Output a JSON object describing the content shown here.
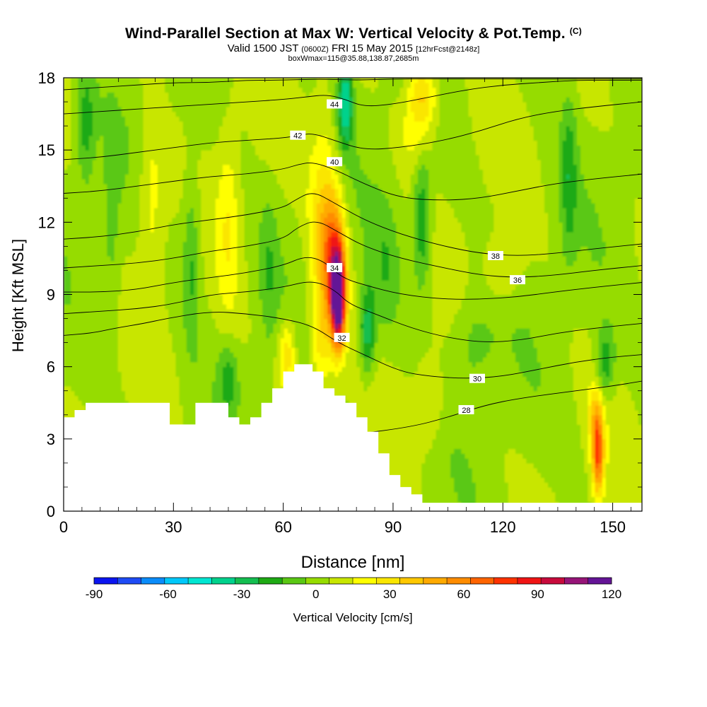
{
  "header": {
    "title": "Wind-Parallel Section at Max W: Vertical Velocity & Pot.Temp.",
    "copyright": "(C)",
    "valid_prefix": "Valid 1500 JST",
    "valid_utc": "(0600Z)",
    "valid_date": "FRI 15 May 2015",
    "forecast": "[12hrFcst@2148z]",
    "box_info": "boxWmax=115@35.88,138.87,2685m"
  },
  "chart_data": {
    "type": "heatmap",
    "title": "Wind-Parallel Section at Max W: Vertical Velocity & Pot.Temp.",
    "xlabel": "Distance [nm]",
    "ylabel": "Height [Kft MSL]",
    "xlim": [
      0,
      158
    ],
    "ylim": [
      0,
      18
    ],
    "x_ticks": [
      "0",
      "30",
      "60",
      "90",
      "120",
      "150"
    ],
    "y_ticks": [
      "0",
      "3",
      "6",
      "9",
      "12",
      "15",
      "18"
    ],
    "x_tick_values": [
      0,
      30,
      60,
      90,
      120,
      150
    ],
    "y_tick_values": [
      0,
      3,
      6,
      9,
      12,
      15,
      18
    ],
    "colorbar": {
      "label": "Vertical Velocity [cm/s]",
      "tick_labels": [
        "-90",
        "-60",
        "-30",
        "0",
        "30",
        "60",
        "90",
        "120"
      ],
      "tick_values": [
        -90,
        -60,
        -30,
        0,
        30,
        60,
        90,
        120
      ],
      "min": -90,
      "max": 120,
      "step": 10,
      "colors": [
        "#0a14f0",
        "#1e4bf5",
        "#0a8cfa",
        "#00c8fa",
        "#00e6d2",
        "#00d28c",
        "#14be50",
        "#1eaa14",
        "#5ac814",
        "#96dc00",
        "#c8e600",
        "#ffff00",
        "#fae600",
        "#ffc800",
        "#ffaa00",
        "#ff8c00",
        "#ff6400",
        "#ff3200",
        "#f01414",
        "#c80a3c",
        "#961478",
        "#641496"
      ]
    },
    "terrain_profile": {
      "x": [
        0,
        3,
        3,
        6,
        6,
        29,
        29,
        36,
        36,
        45,
        45,
        48,
        48,
        51,
        51,
        54,
        54,
        57,
        57,
        60,
        60,
        63,
        63,
        68,
        68,
        71,
        71,
        74,
        74,
        77,
        77,
        80,
        80,
        83,
        83,
        86,
        86,
        89,
        89,
        92,
        92,
        95,
        95,
        98,
        98,
        101,
        101,
        158
      ],
      "y": [
        3.9,
        3.9,
        4.2,
        4.2,
        4.5,
        4.5,
        3.6,
        3.6,
        4.5,
        4.5,
        3.9,
        3.9,
        3.6,
        3.6,
        3.9,
        3.9,
        4.5,
        4.5,
        5.1,
        5.1,
        5.8,
        5.8,
        6.1,
        6.1,
        5.8,
        5.8,
        5.1,
        5.1,
        4.8,
        4.8,
        4.5,
        4.5,
        3.9,
        3.9,
        3.3,
        3.3,
        2.4,
        2.4,
        1.5,
        1.5,
        1.0,
        1.0,
        0.7,
        0.7,
        0.35,
        0.35,
        0.35,
        0.35
      ]
    },
    "w_features": [
      {
        "x": 75,
        "y": 8.8,
        "sx": 1.9,
        "sy": 1.9,
        "value": 120
      },
      {
        "x": 74,
        "y": 10.5,
        "sx": 3.2,
        "sy": 2.6,
        "value": 55
      },
      {
        "x": 71,
        "y": 11.8,
        "sx": 4,
        "sy": 4.5,
        "value": 32
      },
      {
        "x": 70,
        "y": 7,
        "sx": 3,
        "sy": 2,
        "value": 20
      },
      {
        "x": 61,
        "y": 6.5,
        "sx": 2.5,
        "sy": 1.5,
        "value": 32
      },
      {
        "x": 146,
        "y": 2.4,
        "sx": 1.6,
        "sy": 1.7,
        "value": 70
      },
      {
        "x": 145,
        "y": 4,
        "sx": 2,
        "sy": 1.3,
        "value": 22
      },
      {
        "x": 98,
        "y": 17.3,
        "sx": 4,
        "sy": 1.4,
        "value": 38
      },
      {
        "x": 96,
        "y": 15.5,
        "sx": 5,
        "sy": 1.5,
        "value": 14
      },
      {
        "x": 24,
        "y": 13,
        "sx": 3.5,
        "sy": 4,
        "value": 18
      },
      {
        "x": 45,
        "y": 12,
        "sx": 3,
        "sy": 4,
        "value": 18
      },
      {
        "x": 120,
        "y": 10,
        "sx": 5,
        "sy": 1.5,
        "value": 15
      },
      {
        "x": 100,
        "y": 4.5,
        "sx": 4,
        "sy": 1.8,
        "value": 15
      },
      {
        "x": 77,
        "y": 17,
        "sx": 2,
        "sy": 1.8,
        "value": -48
      },
      {
        "x": 83,
        "y": 7.5,
        "sx": 2.2,
        "sy": 1.8,
        "value": -38
      },
      {
        "x": 98,
        "y": 12,
        "sx": 2.5,
        "sy": 2.8,
        "value": -32
      },
      {
        "x": 35,
        "y": 10.5,
        "sx": 2.5,
        "sy": 3.5,
        "value": -22
      },
      {
        "x": 6,
        "y": 16,
        "sx": 2.5,
        "sy": 2.5,
        "value": -22
      },
      {
        "x": 45,
        "y": 5.6,
        "sx": 2.5,
        "sy": 1.4,
        "value": -22
      },
      {
        "x": 148,
        "y": 6.2,
        "sx": 2.5,
        "sy": 1.4,
        "value": -28
      },
      {
        "x": 138,
        "y": 14,
        "sx": 2.2,
        "sy": 3.5,
        "value": -22
      },
      {
        "x": 112,
        "y": 7,
        "sx": 6,
        "sy": 2,
        "value": -14
      },
      {
        "x": 88,
        "y": 10,
        "sx": 4,
        "sy": 3,
        "value": -15
      },
      {
        "x": 56,
        "y": 10,
        "sx": 2.5,
        "sy": 3,
        "value": -14
      },
      {
        "x": 13,
        "y": 11,
        "sx": 2.5,
        "sy": 4,
        "value": -12
      }
    ],
    "theta_contours": [
      {
        "label": "28",
        "label_at": [
          110,
          4.2
        ],
        "x": [
          80,
          95,
          105,
          115,
          125,
          140,
          150,
          158
        ],
        "y": [
          3.2,
          3.5,
          3.9,
          4.4,
          4.7,
          5.0,
          5.2,
          5.4
        ]
      },
      {
        "label": "30",
        "label_at": [
          113,
          5.5
        ],
        "x": [
          0,
          8,
          14,
          22,
          28,
          40,
          50,
          60,
          68,
          75,
          82,
          92,
          100,
          110,
          120,
          130,
          140,
          150,
          158
        ],
        "y": [
          7.3,
          7.4,
          7.6,
          7.8,
          8.0,
          8.3,
          8.2,
          8.0,
          7.7,
          7.0,
          6.5,
          5.8,
          5.6,
          5.5,
          5.6,
          5.9,
          6.2,
          6.4,
          6.5
        ]
      },
      {
        "label": "32",
        "label_at": [
          76,
          7.2
        ],
        "x": [
          0,
          10,
          20,
          30,
          40,
          50,
          60,
          68,
          74,
          78,
          85,
          95,
          105,
          115,
          125,
          135,
          145,
          158
        ],
        "y": [
          8.2,
          8.3,
          8.4,
          8.6,
          9.0,
          9.1,
          9.3,
          9.6,
          9.2,
          8.6,
          8.2,
          7.6,
          7.2,
          7.0,
          7.1,
          7.4,
          7.6,
          7.8
        ]
      },
      {
        "label": "34",
        "label_at": [
          74,
          10.1
        ],
        "x": [
          0,
          10,
          20,
          30,
          40,
          50,
          60,
          66,
          71,
          76,
          82,
          92,
          104,
          114,
          124,
          134,
          145,
          158
        ],
        "y": [
          9.1,
          9.1,
          9.2,
          9.5,
          9.7,
          9.9,
          10.2,
          10.6,
          10.4,
          9.7,
          9.4,
          9.0,
          8.8,
          8.8,
          8.9,
          9.1,
          9.3,
          9.5
        ]
      },
      {
        "label": "36",
        "label_at": [
          124,
          9.6
        ],
        "x": [
          0,
          10,
          20,
          30,
          40,
          50,
          60,
          64,
          69,
          75,
          82,
          92,
          104,
          114,
          124,
          134,
          145,
          158
        ],
        "y": [
          10.1,
          10.2,
          10.3,
          10.5,
          10.8,
          11.0,
          11.3,
          11.8,
          12.1,
          11.6,
          11.0,
          10.5,
          10.1,
          9.8,
          9.7,
          9.8,
          10.0,
          10.2
        ]
      },
      {
        "label": "38",
        "label_at": [
          118,
          10.6
        ],
        "x": [
          0,
          10,
          20,
          30,
          40,
          50,
          60,
          63,
          68,
          74,
          82,
          92,
          104,
          114,
          124,
          134,
          145,
          158
        ],
        "y": [
          11.3,
          11.4,
          11.6,
          11.9,
          12.1,
          12.3,
          12.6,
          12.9,
          13.3,
          12.8,
          12.1,
          11.5,
          11.0,
          10.7,
          10.6,
          10.7,
          10.9,
          11.1
        ]
      },
      {
        "label": "40",
        "label_at": [
          74,
          14.5
        ],
        "x": [
          0,
          10,
          20,
          30,
          40,
          50,
          60,
          64,
          68,
          74,
          82,
          92,
          104,
          114,
          124,
          134,
          145,
          158
        ],
        "y": [
          13.2,
          13.3,
          13.5,
          13.7,
          13.9,
          14.0,
          14.2,
          14.4,
          14.5,
          14.2,
          13.6,
          13.0,
          12.9,
          13.0,
          13.3,
          13.6,
          13.8,
          14.0
        ]
      },
      {
        "label": "42",
        "label_at": [
          64,
          15.6
        ],
        "x": [
          0,
          10,
          20,
          30,
          40,
          50,
          60,
          64,
          68,
          74,
          82,
          92,
          104,
          114,
          124,
          134,
          145,
          158
        ],
        "y": [
          14.6,
          14.7,
          14.9,
          15.1,
          15.3,
          15.4,
          15.5,
          15.6,
          15.7,
          15.4,
          15.0,
          15.1,
          15.4,
          15.8,
          16.3,
          16.6,
          16.8,
          17.0
        ]
      },
      {
        "label": "44",
        "label_at": [
          74,
          16.9
        ],
        "x": [
          0,
          10,
          20,
          30,
          40,
          50,
          60,
          66,
          72,
          77,
          82,
          90,
          100,
          110,
          120,
          130,
          140,
          150,
          158
        ],
        "y": [
          16.5,
          16.6,
          16.7,
          16.8,
          16.9,
          17.0,
          17.1,
          17.2,
          17.3,
          17.1,
          16.8,
          16.9,
          17.2,
          17.5,
          17.7,
          17.8,
          17.9,
          17.9,
          17.9
        ]
      },
      {
        "label": "",
        "label_at": null,
        "x": [
          0,
          10,
          20,
          30,
          40,
          50,
          60,
          70,
          80,
          90,
          100,
          110,
          120,
          130,
          140,
          150,
          158
        ],
        "y": [
          17.5,
          17.6,
          17.7,
          17.8,
          17.8,
          17.9,
          17.9,
          17.95,
          17.9,
          17.95,
          17.95,
          17.95,
          17.95,
          17.95,
          17.95,
          17.95,
          17.95
        ]
      }
    ],
    "grid": false,
    "legend": "bottom colorbar"
  }
}
